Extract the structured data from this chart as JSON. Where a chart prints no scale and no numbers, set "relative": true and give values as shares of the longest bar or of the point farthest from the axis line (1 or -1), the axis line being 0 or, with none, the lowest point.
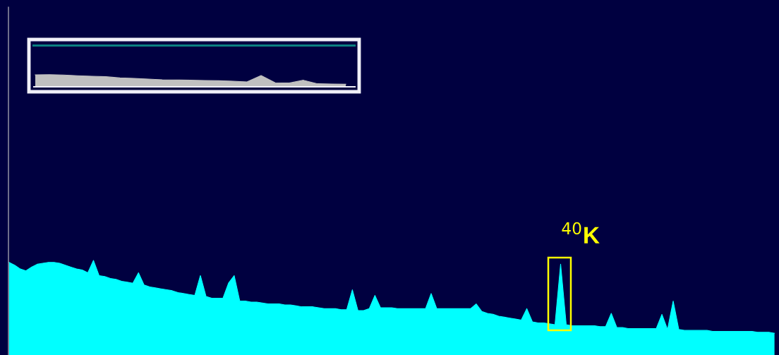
{
  "chart_data": [
    {
      "type": "area",
      "relative": true,
      "color": "#00ffff",
      "annotations": [
        "$^{40}$K"
      ],
      "categories": [
        null,
        null,
        null,
        null,
        null,
        null,
        null,
        null,
        null,
        null,
        null,
        null,
        null,
        null,
        null,
        null,
        null,
        null,
        null,
        null,
        null,
        null,
        null,
        null,
        null,
        null,
        null,
        null,
        null,
        null,
        null,
        null,
        null,
        null,
        null,
        null,
        null,
        null,
        null,
        null,
        null,
        null,
        null,
        null,
        null,
        null,
        null,
        null,
        null,
        null,
        null,
        null,
        null,
        null,
        null,
        null,
        null,
        null,
        null,
        null,
        null,
        null,
        null,
        null,
        null,
        null,
        null,
        null,
        null,
        null,
        null,
        null,
        null,
        null,
        null,
        null,
        null,
        null,
        null,
        null,
        null,
        null,
        null,
        null,
        null,
        null,
        null,
        null,
        null,
        null,
        null,
        null,
        null,
        null,
        null,
        null,
        null,
        null,
        null,
        null,
        null,
        null,
        null,
        null,
        null,
        null,
        null,
        null,
        null,
        null,
        null,
        null,
        null,
        null,
        null,
        null,
        null,
        null,
        null,
        null,
        null,
        null,
        null,
        null,
        null,
        null,
        null,
        null,
        null,
        null,
        null,
        null,
        null,
        null,
        null,
        null,
        null
      ],
      "values": [
        0.98,
        0.95,
        0.91,
        0.89,
        0.93,
        0.96,
        0.97,
        0.98,
        0.98,
        0.97,
        0.95,
        0.93,
        0.91,
        0.9,
        0.87,
        1.0,
        0.84,
        0.83,
        0.81,
        0.8,
        0.78,
        0.77,
        0.76,
        0.87,
        0.74,
        0.72,
        0.71,
        0.7,
        0.69,
        0.68,
        0.66,
        0.65,
        0.64,
        0.63,
        0.84,
        0.62,
        0.6,
        0.6,
        0.6,
        0.76,
        0.84,
        0.57,
        0.57,
        0.56,
        0.56,
        0.55,
        0.54,
        0.54,
        0.54,
        0.53,
        0.53,
        0.52,
        0.51,
        0.51,
        0.51,
        0.5,
        0.49,
        0.49,
        0.49,
        0.48,
        0.48,
        0.69,
        0.47,
        0.47,
        0.49,
        0.63,
        0.5,
        0.5,
        0.5,
        0.49,
        0.49,
        0.49,
        0.49,
        0.49,
        0.49,
        0.65,
        0.49,
        0.49,
        0.49,
        0.49,
        0.49,
        0.49,
        0.49,
        0.54,
        0.46,
        0.44,
        0.43,
        0.41,
        0.4,
        0.39,
        0.38,
        0.37,
        0.49,
        0.35,
        0.34,
        0.34,
        0.33,
        0.32,
        0.96,
        0.32,
        0.31,
        0.31,
        0.31,
        0.31,
        0.31,
        0.3,
        0.3,
        0.44,
        0.29,
        0.29,
        0.28,
        0.28,
        0.28,
        0.28,
        0.28,
        0.28,
        0.43,
        0.27,
        0.57,
        0.27,
        0.26,
        0.26,
        0.26,
        0.26,
        0.26,
        0.25,
        0.25,
        0.25,
        0.25,
        0.25,
        0.25,
        0.25,
        0.25,
        0.24,
        0.24,
        0.24,
        0.23
      ]
    },
    {
      "type": "area",
      "relative": true,
      "color": "#c0c0c0",
      "categories": [
        null,
        null,
        null,
        null,
        null,
        null,
        null,
        null,
        null,
        null,
        null,
        null,
        null,
        null,
        null,
        null,
        null,
        null,
        null,
        null,
        null,
        null,
        null
      ],
      "values": [
        0.98,
        1.0,
        0.97,
        0.91,
        0.87,
        0.83,
        0.73,
        0.69,
        0.64,
        0.58,
        0.56,
        0.54,
        0.52,
        0.5,
        0.46,
        0.4,
        0.92,
        0.33,
        0.31,
        0.54,
        0.25,
        0.23,
        0.21
      ]
    }
  ]
}
